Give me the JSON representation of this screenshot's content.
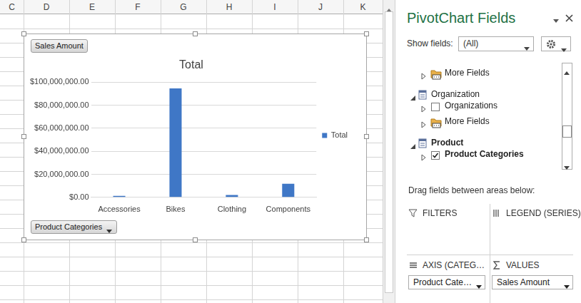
{
  "sheet": {
    "columns": [
      "C",
      "D",
      "E",
      "F",
      "G",
      "H",
      "I",
      "J",
      "K"
    ]
  },
  "chart_buttons": {
    "values_field": "Sales Amount",
    "axis_field": "Product Categories"
  },
  "chart_data": {
    "type": "bar",
    "title": "Total",
    "categories": [
      "Accessories",
      "Bikes",
      "Clothing",
      "Components"
    ],
    "series": [
      {
        "name": "Total",
        "color": "#3f77c6",
        "values": [
          1300000,
          94600000,
          2100000,
          11800000
        ]
      }
    ],
    "ylim": [
      0,
      100000000
    ],
    "yticks": [
      {
        "value": 0,
        "label": "$0.00"
      },
      {
        "value": 20000000,
        "label": "$20,000,000.00"
      },
      {
        "value": 40000000,
        "label": "$40,000,000.00"
      },
      {
        "value": 60000000,
        "label": "$60,000,000.00"
      },
      {
        "value": 80000000,
        "label": "$80,000,000.00"
      },
      {
        "value": 100000000,
        "label": "$100,000,000.00"
      }
    ],
    "grid": true,
    "legend": "right"
  },
  "field_list": {
    "title": "PivotChart Fields",
    "show_fields_label": "Show fields:",
    "show_fields_value": "(All)",
    "items": [
      {
        "label": "More Fields",
        "kind": "folder"
      },
      {
        "label": "Organization",
        "kind": "table"
      },
      {
        "label": "Organizations",
        "kind": "field",
        "checked": false
      },
      {
        "label": "More Fields",
        "kind": "folder"
      },
      {
        "label": "Product",
        "kind": "table"
      },
      {
        "label": "Product Categories",
        "kind": "field",
        "checked": true
      }
    ],
    "drag_hint": "Drag fields between areas below:",
    "areas": {
      "filters": {
        "label": "FILTERS",
        "fields": []
      },
      "legend": {
        "label": "LEGEND (SERIES)",
        "fields": []
      },
      "axis": {
        "label": "AXIS (CATEG…",
        "fields": [
          "Product Cate…"
        ]
      },
      "values": {
        "label": "VALUES",
        "fields": [
          "Sales Amount"
        ]
      }
    }
  }
}
